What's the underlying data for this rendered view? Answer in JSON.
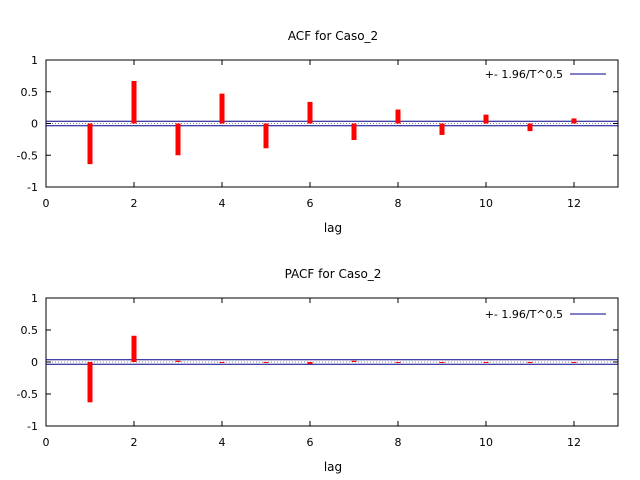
{
  "chart_data": [
    {
      "type": "bar",
      "title": "ACF for Caso_2",
      "xlabel": "lag",
      "ylabel": "",
      "xlim": [
        0,
        13
      ],
      "ylim": [
        -1,
        1
      ],
      "xticks": [
        "0",
        "2",
        "4",
        "6",
        "8",
        "10",
        "12"
      ],
      "yticks": [
        "1",
        "0.5",
        "0",
        "-0.5",
        "-1"
      ],
      "legend": {
        "label": "+- 1.96/T^0.5",
        "placement": "top-right"
      },
      "confidence_band": 0.035,
      "bar_color": "#ff0000",
      "band_color": "#00008b",
      "x": [
        1,
        2,
        3,
        4,
        5,
        6,
        7,
        8,
        9,
        10,
        11,
        12
      ],
      "values": [
        -0.64,
        0.67,
        -0.5,
        0.47,
        -0.39,
        0.34,
        -0.26,
        0.22,
        -0.18,
        0.14,
        -0.12,
        0.08
      ]
    },
    {
      "type": "bar",
      "title": "PACF for Caso_2",
      "xlabel": "lag",
      "ylabel": "",
      "xlim": [
        0,
        13
      ],
      "ylim": [
        -1,
        1
      ],
      "xticks": [
        "0",
        "2",
        "4",
        "6",
        "8",
        "10",
        "12"
      ],
      "yticks": [
        "1",
        "0.5",
        "0",
        "-0.5",
        "-1"
      ],
      "legend": {
        "label": "+- 1.96/T^0.5",
        "placement": "top-right"
      },
      "confidence_band": 0.035,
      "bar_color": "#ff0000",
      "band_color": "#00008b",
      "x": [
        1,
        2,
        3,
        4,
        5,
        6,
        7,
        8,
        9,
        10,
        11,
        12
      ],
      "values": [
        -0.63,
        0.41,
        0.02,
        -0.01,
        0.0,
        -0.03,
        0.02,
        0.0,
        -0.01,
        0.0,
        0.0,
        0.0
      ]
    }
  ]
}
